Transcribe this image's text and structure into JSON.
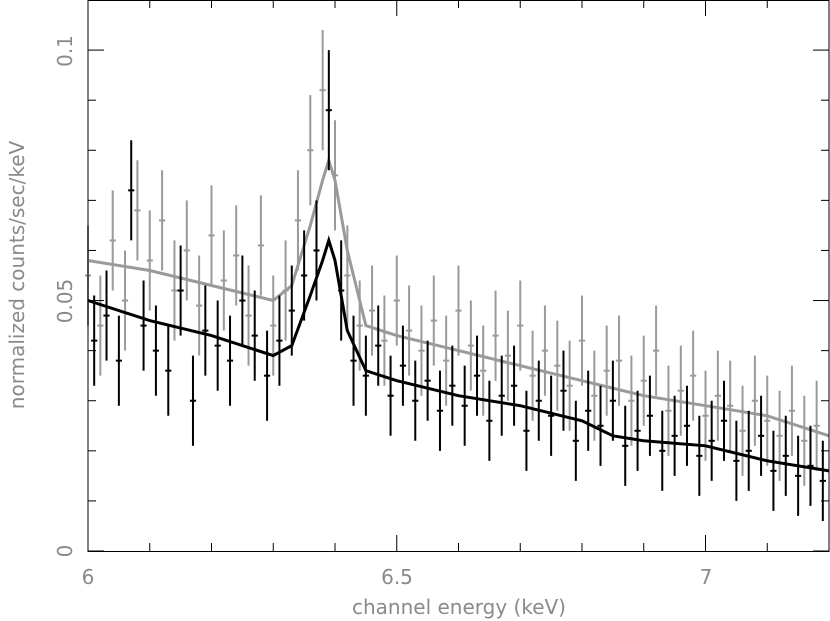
{
  "chart_data": {
    "type": "scatter",
    "xlabel": "channel energy (keV)",
    "ylabel": "normalized counts/sec/keV",
    "xlim": [
      6.0,
      7.2
    ],
    "ylim": [
      0,
      0.11
    ],
    "x_ticks": [
      "6",
      "6.5",
      "7"
    ],
    "y_ticks": [
      "0",
      "0.05",
      "0.1"
    ],
    "grid": false,
    "legend": "none",
    "colors": {
      "series_dark": "#000000",
      "series_light": "#9a9a9a",
      "frame": "#000000",
      "text": "#8a8a8a"
    },
    "series": [
      {
        "color": "#000000",
        "model": {
          "x": [
            6.0,
            6.1,
            6.2,
            6.3,
            6.33,
            6.36,
            6.38,
            6.39,
            6.4,
            6.42,
            6.45,
            6.5,
            6.6,
            6.7,
            6.8,
            6.85,
            6.9,
            7.0,
            7.1,
            7.2
          ],
          "y": [
            0.05,
            0.046,
            0.043,
            0.039,
            0.041,
            0.051,
            0.058,
            0.062,
            0.058,
            0.044,
            0.036,
            0.034,
            0.031,
            0.029,
            0.026,
            0.023,
            0.022,
            0.021,
            0.018,
            0.016
          ]
        },
        "points": {
          "x": [
            6.01,
            6.03,
            6.05,
            6.07,
            6.09,
            6.11,
            6.13,
            6.15,
            6.17,
            6.19,
            6.21,
            6.23,
            6.25,
            6.27,
            6.29,
            6.31,
            6.33,
            6.35,
            6.37,
            6.39,
            6.41,
            6.43,
            6.45,
            6.47,
            6.49,
            6.51,
            6.53,
            6.55,
            6.57,
            6.59,
            6.61,
            6.63,
            6.65,
            6.67,
            6.69,
            6.71,
            6.73,
            6.75,
            6.77,
            6.79,
            6.81,
            6.83,
            6.85,
            6.87,
            6.89,
            6.91,
            6.93,
            6.95,
            6.97,
            6.99,
            7.01,
            7.03,
            7.05,
            7.07,
            7.09,
            7.11,
            7.13,
            7.15,
            7.17,
            7.19
          ],
          "y": [
            0.042,
            0.047,
            0.038,
            0.072,
            0.045,
            0.04,
            0.036,
            0.052,
            0.03,
            0.044,
            0.041,
            0.038,
            0.05,
            0.043,
            0.035,
            0.042,
            0.048,
            0.055,
            0.06,
            0.088,
            0.052,
            0.038,
            0.035,
            0.041,
            0.031,
            0.037,
            0.03,
            0.034,
            0.028,
            0.033,
            0.029,
            0.035,
            0.026,
            0.031,
            0.033,
            0.024,
            0.03,
            0.027,
            0.032,
            0.022,
            0.028,
            0.025,
            0.03,
            0.021,
            0.024,
            0.027,
            0.02,
            0.023,
            0.025,
            0.019,
            0.022,
            0.026,
            0.018,
            0.02,
            0.023,
            0.016,
            0.019,
            0.015,
            0.017,
            0.014
          ],
          "err": [
            0.009,
            0.009,
            0.009,
            0.01,
            0.009,
            0.009,
            0.009,
            0.009,
            0.009,
            0.009,
            0.009,
            0.009,
            0.009,
            0.009,
            0.009,
            0.009,
            0.009,
            0.009,
            0.01,
            0.012,
            0.01,
            0.009,
            0.008,
            0.008,
            0.008,
            0.008,
            0.008,
            0.008,
            0.008,
            0.008,
            0.008,
            0.008,
            0.008,
            0.008,
            0.008,
            0.008,
            0.008,
            0.008,
            0.008,
            0.008,
            0.008,
            0.008,
            0.008,
            0.008,
            0.008,
            0.008,
            0.008,
            0.008,
            0.008,
            0.008,
            0.008,
            0.008,
            0.008,
            0.008,
            0.008,
            0.008,
            0.008,
            0.008,
            0.008,
            0.008
          ]
        }
      },
      {
        "color": "#9a9a9a",
        "model": {
          "x": [
            6.0,
            6.1,
            6.2,
            6.3,
            6.33,
            6.36,
            6.38,
            6.39,
            6.4,
            6.42,
            6.45,
            6.5,
            6.6,
            6.7,
            6.8,
            6.9,
            7.0,
            7.05,
            7.1,
            7.2
          ],
          "y": [
            0.058,
            0.056,
            0.053,
            0.05,
            0.053,
            0.065,
            0.074,
            0.078,
            0.074,
            0.06,
            0.045,
            0.043,
            0.04,
            0.037,
            0.034,
            0.031,
            0.029,
            0.028,
            0.027,
            0.023
          ]
        },
        "points": {
          "x": [
            6.0,
            6.02,
            6.04,
            6.06,
            6.08,
            6.1,
            6.12,
            6.14,
            6.16,
            6.18,
            6.2,
            6.22,
            6.24,
            6.26,
            6.28,
            6.3,
            6.32,
            6.34,
            6.36,
            6.38,
            6.4,
            6.42,
            6.44,
            6.46,
            6.48,
            6.5,
            6.52,
            6.54,
            6.56,
            6.58,
            6.6,
            6.62,
            6.64,
            6.66,
            6.68,
            6.7,
            6.72,
            6.74,
            6.76,
            6.78,
            6.8,
            6.82,
            6.84,
            6.86,
            6.88,
            6.9,
            6.92,
            6.94,
            6.96,
            6.98,
            7.0,
            7.02,
            7.04,
            7.06,
            7.08,
            7.1,
            7.12,
            7.14,
            7.16,
            7.18
          ],
          "y": [
            0.055,
            0.045,
            0.062,
            0.05,
            0.068,
            0.058,
            0.066,
            0.052,
            0.06,
            0.049,
            0.063,
            0.054,
            0.059,
            0.047,
            0.061,
            0.045,
            0.052,
            0.066,
            0.08,
            0.092,
            0.075,
            0.055,
            0.045,
            0.048,
            0.042,
            0.05,
            0.044,
            0.04,
            0.046,
            0.038,
            0.048,
            0.041,
            0.036,
            0.043,
            0.039,
            0.045,
            0.035,
            0.04,
            0.037,
            0.033,
            0.042,
            0.031,
            0.036,
            0.038,
            0.03,
            0.034,
            0.04,
            0.028,
            0.032,
            0.035,
            0.027,
            0.031,
            0.029,
            0.024,
            0.03,
            0.026,
            0.023,
            0.028,
            0.022,
            0.025
          ],
          "err": [
            0.01,
            0.01,
            0.01,
            0.01,
            0.01,
            0.01,
            0.01,
            0.01,
            0.01,
            0.01,
            0.01,
            0.01,
            0.01,
            0.01,
            0.01,
            0.01,
            0.01,
            0.01,
            0.011,
            0.012,
            0.011,
            0.01,
            0.009,
            0.009,
            0.009,
            0.009,
            0.009,
            0.009,
            0.009,
            0.009,
            0.009,
            0.009,
            0.009,
            0.009,
            0.009,
            0.009,
            0.009,
            0.009,
            0.009,
            0.009,
            0.009,
            0.009,
            0.009,
            0.009,
            0.009,
            0.009,
            0.009,
            0.009,
            0.009,
            0.009,
            0.009,
            0.009,
            0.009,
            0.009,
            0.009,
            0.009,
            0.009,
            0.009,
            0.009,
            0.009
          ]
        }
      }
    ]
  }
}
